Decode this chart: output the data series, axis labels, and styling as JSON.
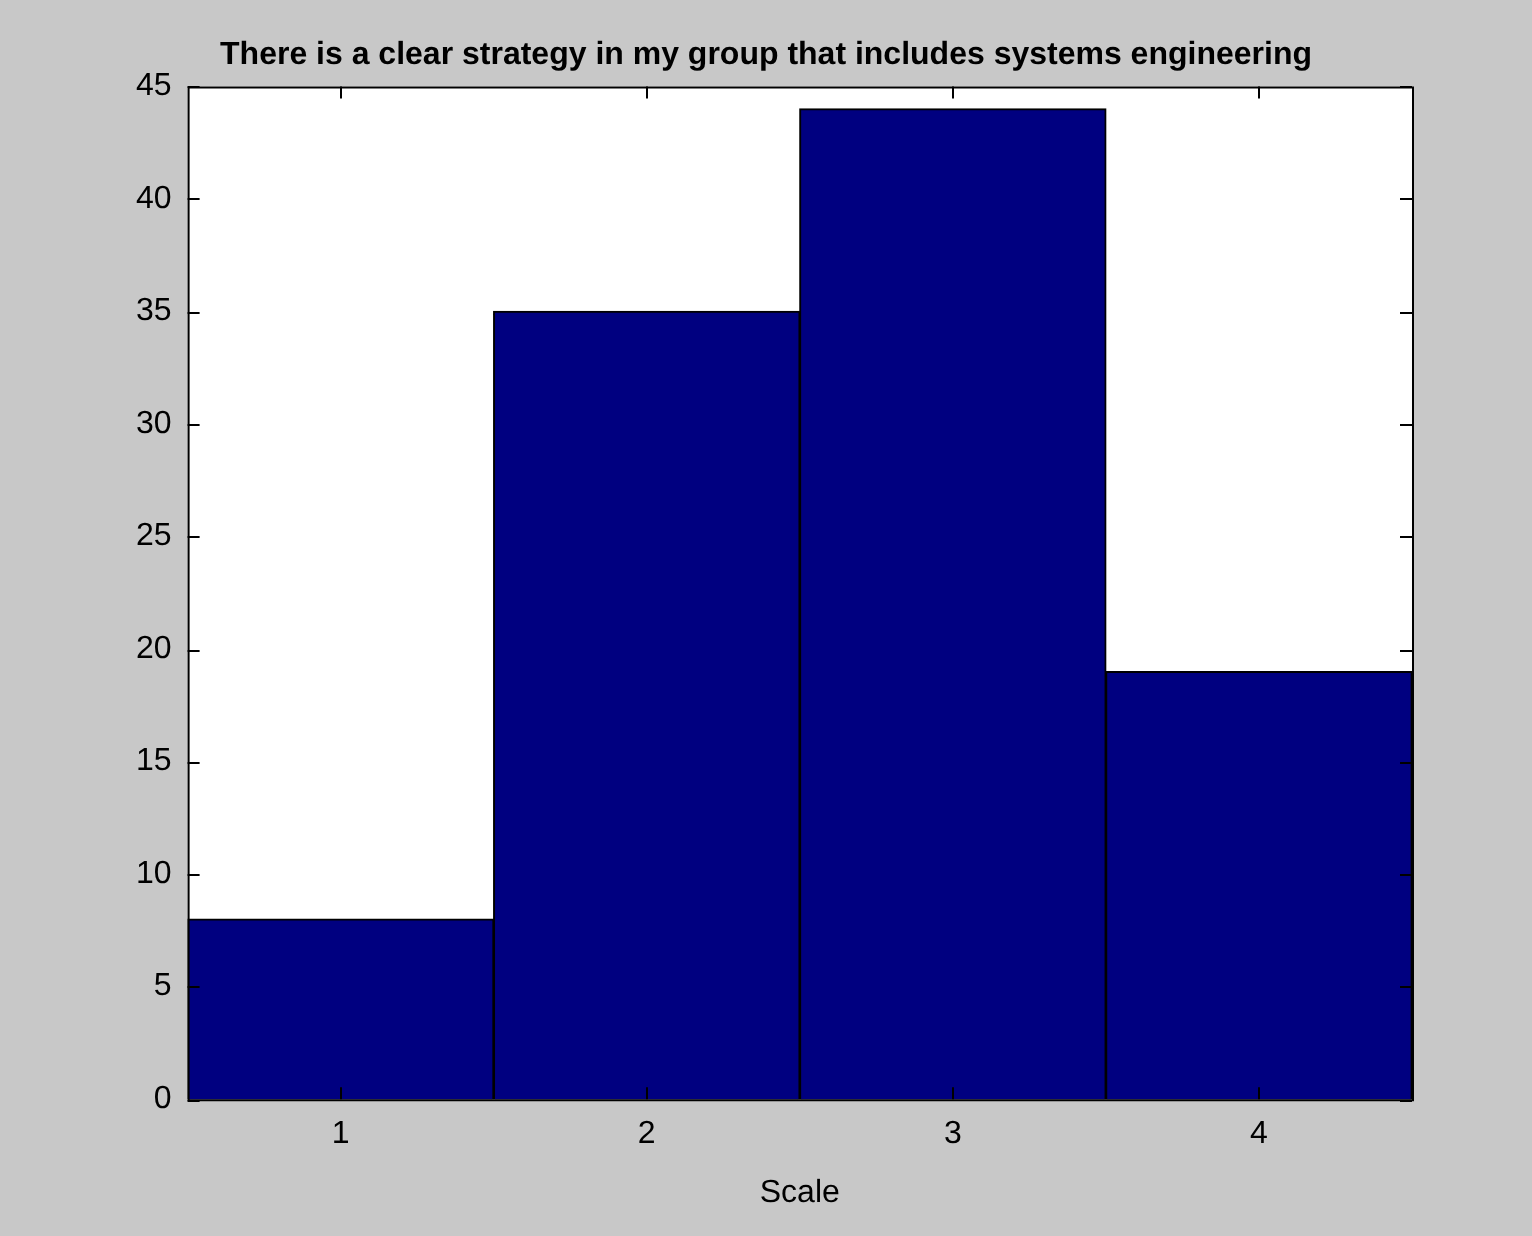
{
  "chart_data": {
    "type": "bar",
    "title": "There is a clear strategy in my group that includes systems engineering",
    "xlabel": "Scale",
    "categories": [
      "1",
      "2",
      "3",
      "4"
    ],
    "values": [
      8,
      35,
      44,
      19
    ],
    "color": "#000080",
    "ylim": [
      0,
      45
    ],
    "yticks": [
      0,
      5,
      10,
      15,
      20,
      25,
      30,
      35,
      40,
      45
    ],
    "grid": false,
    "legend": false
  }
}
